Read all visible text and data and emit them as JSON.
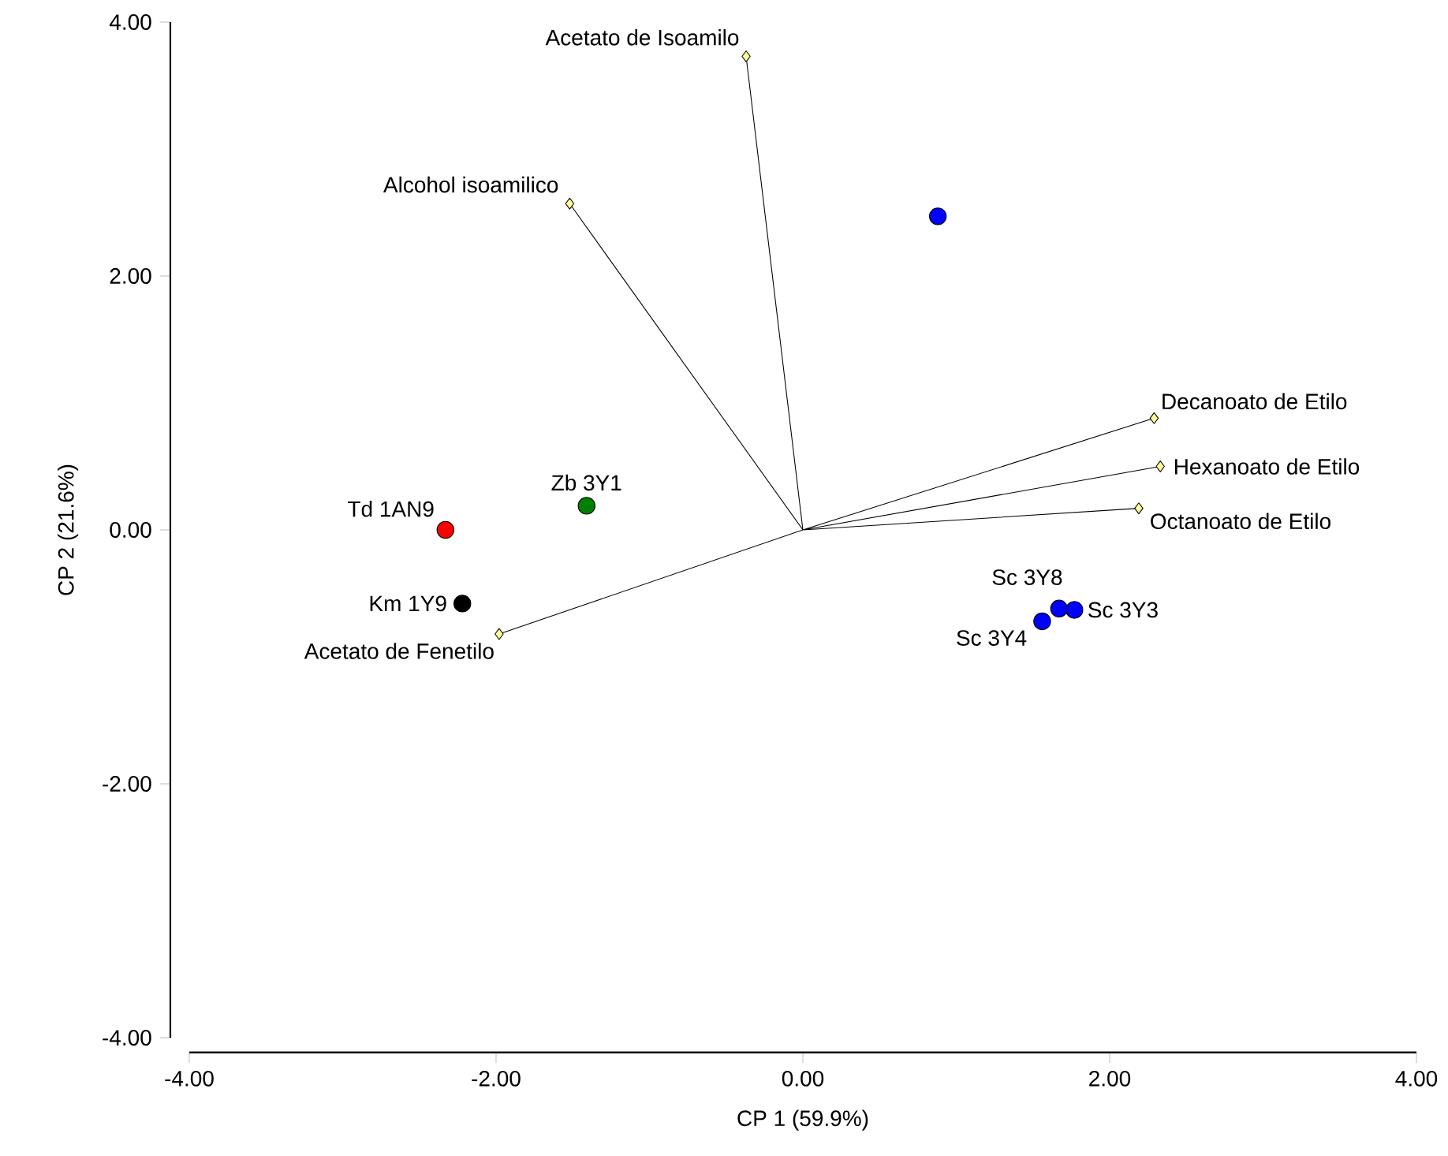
{
  "chart_data": {
    "type": "scatter",
    "xlabel": "CP 1 (59.9%)",
    "ylabel": "CP 2 (21.6%)",
    "xlim": [
      -4,
      4
    ],
    "ylim": [
      -4,
      4
    ],
    "xticks": [
      {
        "value": -4,
        "label": "-4.00"
      },
      {
        "value": -2,
        "label": "-2.00"
      },
      {
        "value": 0,
        "label": "0.00"
      },
      {
        "value": 2,
        "label": "2.00"
      },
      {
        "value": 4,
        "label": "4.00"
      }
    ],
    "yticks": [
      {
        "value": -4,
        "label": "-4.00"
      },
      {
        "value": -2,
        "label": "-2.00"
      },
      {
        "value": 0,
        "label": "0.00"
      },
      {
        "value": 2,
        "label": "2.00"
      },
      {
        "value": 4,
        "label": "4.00"
      }
    ],
    "series": [
      {
        "type": "line",
        "color": "#000000",
        "marker": "diamond",
        "x": [
          -0.37,
          0,
          -1.52,
          0,
          2.29,
          0,
          2.33,
          0,
          2.19,
          0,
          -1.98
        ],
        "values": [
          3.73,
          0,
          2.57,
          0,
          0.88,
          0,
          0.5,
          0,
          0.17,
          0,
          -0.82
        ]
      },
      {
        "marker": "circle",
        "colors": [
          "#0000ff",
          "#008000",
          "#ff0000",
          "#000000",
          "#0000ff",
          "#0000ff",
          "#0000ff"
        ],
        "x": [
          0.88,
          -1.41,
          -2.33,
          -2.22,
          1.67,
          1.77,
          1.56
        ],
        "values": [
          2.47,
          0.19,
          0.0,
          -0.58,
          -0.62,
          -0.63,
          -0.72
        ]
      }
    ],
    "annotations": [
      {
        "text": "Acetato de Isoamilo",
        "x": -0.37,
        "y": 3.73
      },
      {
        "text": "Alcohol isoamilico",
        "x": -1.52,
        "y": 2.57
      },
      {
        "text": "Decanoato de Etilo",
        "x": 2.29,
        "y": 0.88
      },
      {
        "text": "Hexanoato de Etilo",
        "x": 2.33,
        "y": 0.5
      },
      {
        "text": "Octanoato de Etilo",
        "x": 2.19,
        "y": 0.17
      },
      {
        "text": "Acetato de Fenetilo",
        "x": -1.98,
        "y": -0.82
      },
      {
        "text": "Zb 3Y1",
        "x": -1.41,
        "y": 0.19
      },
      {
        "text": "Td 1AN9",
        "x": -2.33,
        "y": 0.0
      },
      {
        "text": "Km 1Y9",
        "x": -2.22,
        "y": -0.58
      },
      {
        "text": "Sc 3Y8",
        "x": 1.67,
        "y": -0.62
      },
      {
        "text": "Sc 3Y3",
        "x": 1.77,
        "y": -0.63
      },
      {
        "text": "Sc 3Y4",
        "x": 1.56,
        "y": -0.72
      }
    ]
  }
}
